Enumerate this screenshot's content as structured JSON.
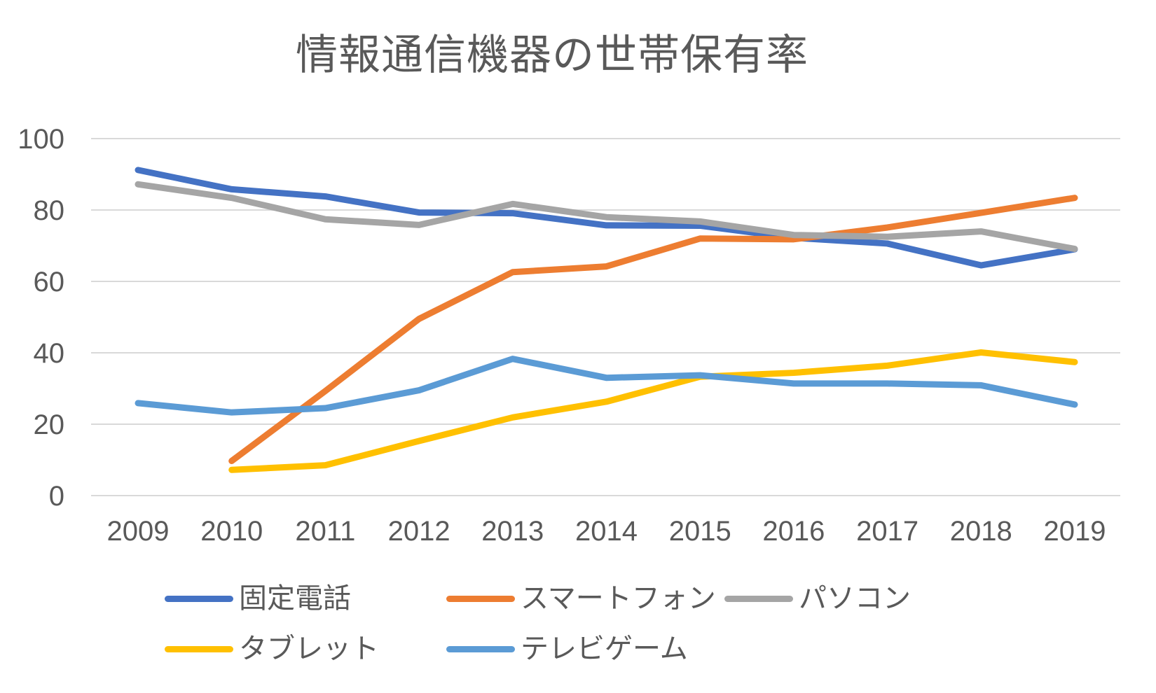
{
  "chart_data": {
    "type": "line",
    "title": "情報通信機器の世帯保有率",
    "x": [
      2009,
      2010,
      2011,
      2012,
      2013,
      2014,
      2015,
      2016,
      2017,
      2018,
      2019
    ],
    "x_tick_labels": [
      "2009",
      "2010",
      "2011",
      "2012",
      "2013",
      "2014",
      "2015",
      "2016",
      "2017",
      "2018",
      "2019"
    ],
    "y_ticks": [
      0,
      20,
      40,
      60,
      80,
      100
    ],
    "y_tick_labels": [
      "0",
      "20",
      "40",
      "60",
      "80",
      "100"
    ],
    "ylim": [
      0,
      100
    ],
    "grid": true,
    "legend_position": "bottom",
    "series": [
      {
        "id": "fixed-phone",
        "name": "固定電話",
        "color": "#4472C4",
        "values": [
          91.2,
          85.8,
          83.8,
          79.3,
          79.1,
          75.7,
          75.6,
          72.2,
          70.6,
          64.5,
          69.0
        ]
      },
      {
        "id": "smartphone",
        "name": "スマートフォン",
        "color": "#ED7D31",
        "values": [
          null,
          9.7,
          29.3,
          49.5,
          62.6,
          64.2,
          72.0,
          71.8,
          75.1,
          79.2,
          83.4
        ]
      },
      {
        "id": "pc",
        "name": "パソコン",
        "color": "#A5A5A5",
        "values": [
          87.2,
          83.4,
          77.4,
          75.8,
          81.7,
          78.0,
          76.8,
          73.0,
          72.5,
          74.0,
          69.1
        ]
      },
      {
        "id": "tablet",
        "name": "タブレット",
        "color": "#FFC000",
        "values": [
          null,
          7.2,
          8.5,
          15.3,
          21.9,
          26.3,
          33.3,
          34.4,
          36.4,
          40.1,
          37.4
        ]
      },
      {
        "id": "tv-game",
        "name": "テレビゲーム",
        "color": "#5B9BD5",
        "values": [
          25.9,
          23.3,
          24.5,
          29.5,
          38.3,
          33.0,
          33.7,
          31.4,
          31.4,
          30.9,
          25.5
        ]
      }
    ],
    "colors": {
      "background": "#FFFFFF",
      "gridline": "#D9D9D9",
      "text": "#595959"
    }
  }
}
